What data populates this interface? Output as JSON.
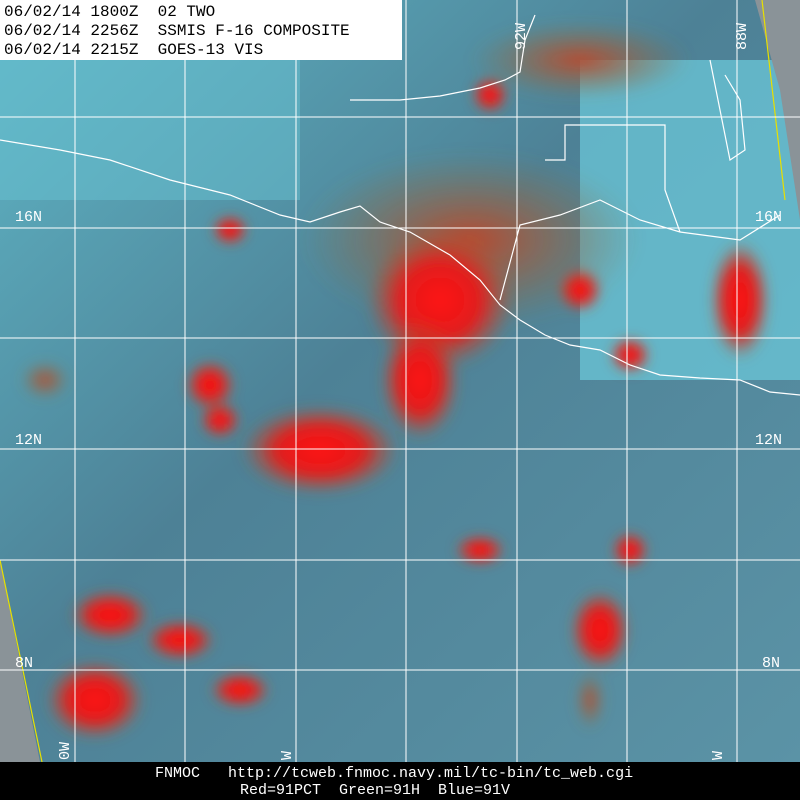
{
  "header": {
    "lines": [
      "06/02/14 1800Z  02 TWO",
      "06/02/14 2256Z  SSMIS F-16 COMPOSITE",
      "06/02/14 2215Z  GOES-13 VIS"
    ]
  },
  "map": {
    "lat_labels": [
      "16N",
      "12N",
      "8N"
    ],
    "lon_labels_top": [
      "92W",
      "88W"
    ],
    "lon_labels_bottom": [
      "0W",
      "W",
      "W"
    ]
  },
  "footer": {
    "source": "FNMOC",
    "url": "http://tcweb.fnmoc.navy.mil/tc-bin/tc_web.cgi",
    "channels": "Red=91PCT  Green=91H  Blue=91V"
  }
}
